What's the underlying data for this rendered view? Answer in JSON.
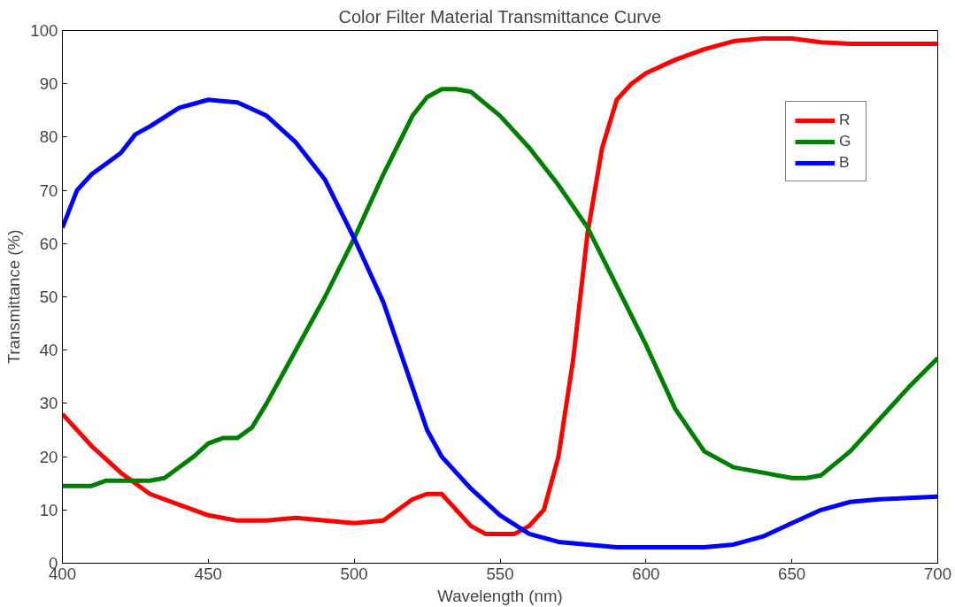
{
  "chart_data": {
    "type": "line",
    "title": "Color Filter Material Transmittance Curve",
    "xlabel": "Wavelength (nm)",
    "ylabel": "Transmittance (%)",
    "xlim": [
      400,
      700
    ],
    "xticks": [
      400,
      450,
      500,
      550,
      600,
      650,
      700
    ],
    "ylim": [
      0,
      100
    ],
    "yticks": [
      0,
      10,
      20,
      30,
      40,
      50,
      60,
      70,
      80,
      90,
      100
    ],
    "grid": false,
    "legend": "top right",
    "marker": "none",
    "line_style": "solid",
    "series": [
      {
        "name": "R",
        "color": "#ff0000",
        "x": [
          400,
          410,
          420,
          430,
          440,
          450,
          460,
          470,
          480,
          490,
          500,
          510,
          520,
          525,
          530,
          535,
          540,
          545,
          555,
          560,
          565,
          570,
          575,
          580,
          585,
          590,
          595,
          600,
          610,
          620,
          630,
          640,
          650,
          660,
          670,
          700
        ],
        "values": [
          28,
          22,
          17,
          13,
          11,
          9,
          8,
          8,
          8.5,
          8,
          7.5,
          8,
          12,
          13,
          13,
          10,
          7,
          5.5,
          5.5,
          7,
          10,
          20,
          38,
          62,
          78,
          87,
          90,
          92,
          94.5,
          96.5,
          98,
          98.5,
          98.5,
          97.8,
          97.5,
          97.5
        ]
      },
      {
        "name": "G",
        "color": "#008000",
        "x": [
          400,
          410,
          415,
          430,
          435,
          445,
          450,
          455,
          460,
          465,
          470,
          480,
          490,
          500,
          510,
          520,
          525,
          530,
          535,
          540,
          550,
          560,
          570,
          580,
          590,
          600,
          610,
          620,
          630,
          640,
          650,
          655,
          660,
          670,
          680,
          690,
          700
        ],
        "values": [
          14.5,
          14.5,
          15.5,
          15.5,
          16,
          20,
          22.5,
          23.5,
          23.5,
          25.5,
          30,
          40,
          50,
          61,
          73,
          84,
          87.5,
          89,
          89,
          88.5,
          84,
          78,
          71,
          63,
          52,
          41,
          29,
          21,
          18,
          17,
          16,
          16,
          16.5,
          21,
          27,
          33,
          38.5
        ]
      },
      {
        "name": "B",
        "color": "#0000ff",
        "x": [
          400,
          405,
          410,
          420,
          425,
          430,
          440,
          450,
          460,
          470,
          480,
          490,
          500,
          510,
          520,
          525,
          530,
          540,
          550,
          560,
          570,
          580,
          590,
          600,
          610,
          620,
          630,
          640,
          650,
          660,
          670,
          680,
          700
        ],
        "values": [
          63,
          70,
          73,
          77,
          80.5,
          82,
          85.5,
          87,
          86.5,
          84,
          79,
          72,
          61,
          49,
          33,
          25,
          20,
          14,
          9,
          5.5,
          4,
          3.5,
          3,
          3,
          3,
          3,
          3.5,
          5,
          7.5,
          10,
          11.5,
          12,
          12.5
        ]
      }
    ]
  }
}
